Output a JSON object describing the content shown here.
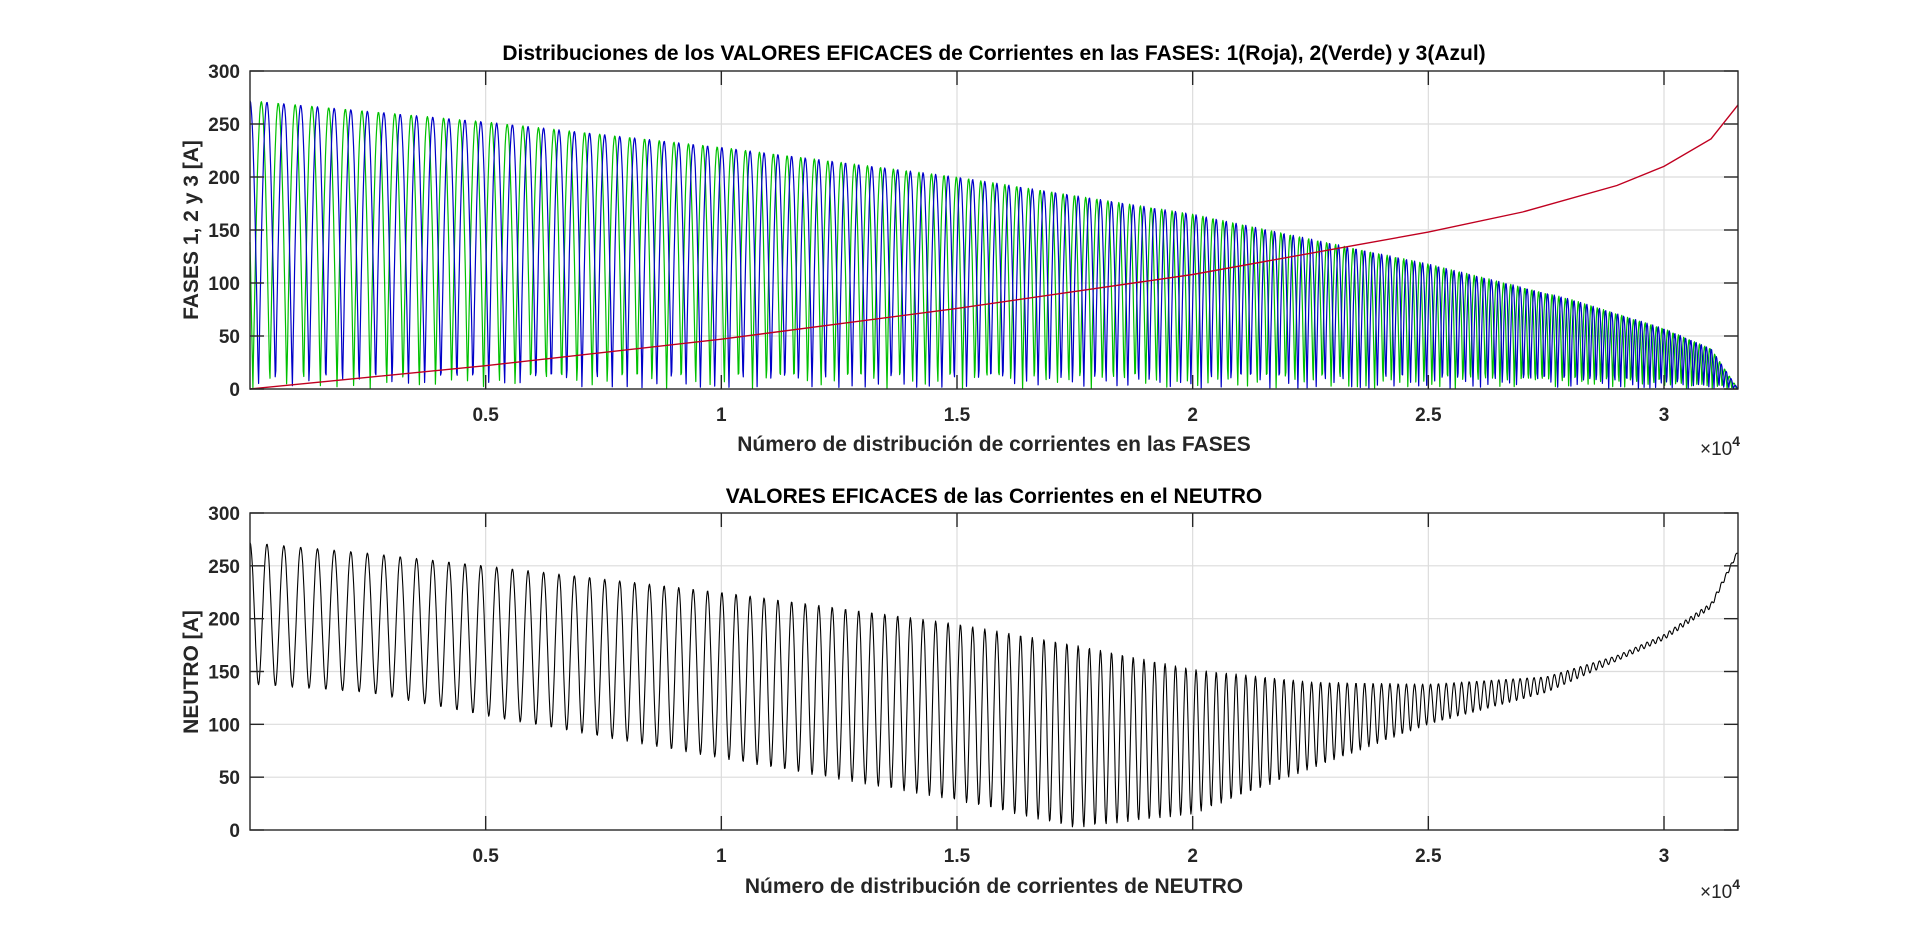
{
  "chart_data": [
    {
      "type": "line",
      "title": "Distribuciones de los VALORES EFICACES de Corrientes en las FASES: 1(Roja), 2(Verde) y 3(Azul)",
      "xlabel": "Número de distribución de corrientes en las FASES",
      "ylabel": "FASES 1, 2 y 3 [A]",
      "x_exponent_label": "×10",
      "x_exponent_power": "4",
      "xlim": [
        0,
        31570
      ],
      "ylim": [
        0,
        300
      ],
      "xticks": [
        5000,
        10000,
        15000,
        20000,
        25000,
        30000
      ],
      "xtick_labels": [
        "0.5",
        "1",
        "1.5",
        "2",
        "2.5",
        "3"
      ],
      "yticks": [
        0,
        50,
        100,
        150,
        200,
        250,
        300
      ],
      "ytick_labels": [
        "0",
        "50",
        "100",
        "150",
        "200",
        "250",
        "300"
      ],
      "grid": true,
      "series": [
        {
          "name": "Fase 1 (Roja)",
          "color": "#c00020",
          "kind": "monotonic",
          "x": [
            0,
            5000,
            10000,
            15000,
            20000,
            23500,
            25000,
            27000,
            29000,
            30000,
            31000,
            31570
          ],
          "values": [
            0,
            22,
            47,
            76,
            108,
            136,
            148,
            167,
            192,
            210,
            236,
            268
          ]
        },
        {
          "name": "Fase 2 (Verde)",
          "color": "#00c000",
          "kind": "oscillating",
          "envelope_x": [
            0,
            5000,
            10000,
            15000,
            20000,
            25000,
            28000,
            30000,
            31000,
            31570
          ],
          "envelope_max": [
            272,
            252,
            228,
            200,
            165,
            118,
            85,
            57,
            38,
            0
          ],
          "min": 0
        },
        {
          "name": "Fase 3 (Azul)",
          "color": "#0000c8",
          "kind": "oscillating",
          "envelope_x": [
            0,
            5000,
            10000,
            15000,
            20000,
            25000,
            28000,
            30000,
            31000,
            31570
          ],
          "envelope_max": [
            272,
            252,
            228,
            200,
            165,
            118,
            85,
            57,
            38,
            0
          ],
          "min": 0
        }
      ]
    },
    {
      "type": "line",
      "title": "VALORES EFICACES de las Corrientes en el NEUTRO",
      "xlabel": "Número de distribución de corrientes de NEUTRO",
      "ylabel": "NEUTRO [A]",
      "x_exponent_label": "×10",
      "x_exponent_power": "4",
      "xlim": [
        0,
        31570
      ],
      "ylim": [
        0,
        300
      ],
      "xticks": [
        5000,
        10000,
        15000,
        20000,
        25000,
        30000
      ],
      "xtick_labels": [
        "0.5",
        "1",
        "1.5",
        "2",
        "2.5",
        "3"
      ],
      "yticks": [
        0,
        50,
        100,
        150,
        200,
        250,
        300
      ],
      "ytick_labels": [
        "0",
        "50",
        "100",
        "150",
        "200",
        "250",
        "300"
      ],
      "grid": true,
      "series": [
        {
          "name": "Neutro",
          "color": "#000000",
          "kind": "band",
          "envelope_x": [
            0,
            2500,
            5000,
            10000,
            15000,
            17500,
            20000,
            22500,
            25000,
            27500,
            29000,
            30000,
            31000,
            31570
          ],
          "envelope_max": [
            272,
            262,
            250,
            225,
            195,
            175,
            152,
            140,
            138,
            145,
            165,
            185,
            215,
            265
          ],
          "envelope_min": [
            138,
            130,
            108,
            68,
            28,
            2,
            15,
            58,
            100,
            130,
            160,
            180,
            210,
            262
          ]
        }
      ]
    }
  ]
}
